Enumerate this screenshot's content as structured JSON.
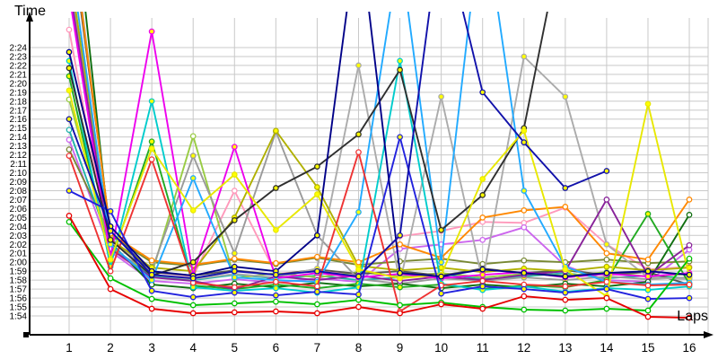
{
  "page": {
    "background": "#ffffff",
    "grid_color": "#c9c9c9",
    "axis_color": "#000000"
  },
  "chart_data": {
    "type": "line",
    "title": "",
    "ylabel": "Time",
    "xlabel": "Laps",
    "x_ticks": [
      "1",
      "2",
      "3",
      "4",
      "5",
      "6",
      "7",
      "8",
      "9",
      "10",
      "11",
      "12",
      "13",
      "14",
      "15",
      "16"
    ],
    "y_ticks": [
      "1:54",
      "1:55",
      "1:56",
      "1:57",
      "1:58",
      "1:59",
      "2:00",
      "2:01",
      "2:02",
      "2:03",
      "2:04",
      "2:05",
      "2:06",
      "2:07",
      "2:08",
      "2:09",
      "2:10",
      "2:11",
      "2:12",
      "2:13",
      "2:14",
      "2:15",
      "2:16",
      "2:17",
      "2:18",
      "2:19",
      "2:20",
      "2:21",
      "2:22",
      "2:23",
      "2:24"
    ],
    "y_axis": {
      "min_seconds": 114,
      "max_seconds": 144,
      "grid": true
    },
    "legend": "none",
    "series": [
      {
        "name": "pink",
        "color": "#ff99bb",
        "marker_fill": "#ffffff",
        "lap_seconds": [
          146.0,
          121.0,
          118.9,
          118.4,
          128.0,
          118.7,
          119.1,
          118.5,
          122.9,
          123.5,
          124.5,
          124.4,
          126.1,
          122.0,
          119.2,
          119.5
        ]
      },
      {
        "name": "violet",
        "color": "#cc66ee",
        "marker_fill": "#ffffff",
        "lap_seconds": [
          133.7,
          121.2,
          117.9,
          117.6,
          118.1,
          117.7,
          118.2,
          117.8,
          121.5,
          122.0,
          122.5,
          123.9,
          119.6,
          118.0,
          117.8,
          121.4
        ]
      },
      {
        "name": "olive-green",
        "color": "#788833",
        "marker_fill": "#ffffff",
        "lap_seconds": [
          132.6,
          123.0,
          120.0,
          119.6,
          120.3,
          119.8,
          120.5,
          119.7,
          120.1,
          120.4,
          119.8,
          120.2,
          120.0,
          120.3,
          119.9,
          120.1
        ]
      },
      {
        "name": "teal",
        "color": "#20b2aa",
        "marker_fill": "#ffffff",
        "lap_seconds": [
          134.8,
          121.8,
          118.4,
          118.0,
          118.6,
          118.2,
          118.5,
          118.0,
          118.3,
          118.7,
          118.1,
          118.4,
          118.8,
          118.2,
          118.5,
          118.2
        ]
      },
      {
        "name": "light-green",
        "color": "#99cc44",
        "marker_fill": "#ffffff",
        "lap_seconds": [
          138.2,
          121.6,
          118.7,
          134.1,
          118.2,
          118.8,
          118.3,
          118.9,
          118.4,
          118.8,
          118.3,
          118.7,
          118.5,
          118.9,
          118.4,
          118.7
        ]
      },
      {
        "name": "dark-gray",
        "color": "#555555",
        "marker_fill": "#ffffff",
        "lap_seconds": [
          158.0,
          123.4,
          118.9,
          118.5,
          119.1,
          118.6,
          119.2,
          118.7,
          119.0,
          118.5,
          119.3,
          118.8,
          119.1,
          118.6,
          118.9,
          117.5
        ]
      },
      {
        "name": "gray-a",
        "color": "#9a9a9a",
        "marker_fill": "#ffff00",
        "lap_seconds": [
          152.0,
          121.3,
          119.1,
          131.9,
          121.0,
          134.6,
          123.0,
          118.1,
          117.6,
          118.2,
          117.9,
          118.3,
          118.0,
          118.4,
          118.1,
          118.3
        ]
      },
      {
        "name": "gray-b",
        "color": "#ababab",
        "marker_fill": "#ffff00",
        "lap_seconds": [
          160.0,
          122.8,
          118.6,
          118.1,
          118.7,
          118.3,
          119.3,
          142.0,
          117.7,
          138.5,
          117.9,
          143.0,
          138.5,
          122.0,
          118.3,
          118.1
        ]
      },
      {
        "name": "forest-green",
        "color": "#0f6e0f",
        "marker_fill": "#ffffff",
        "lap_seconds": [
          165.0,
          122.2,
          117.5,
          117.1,
          117.6,
          117.2,
          117.7,
          117.3,
          117.6,
          117.1,
          117.5,
          117.2,
          117.6,
          117.3,
          117.8,
          125.3
        ]
      },
      {
        "name": "green-medium",
        "color": "#22aa22",
        "marker_fill": "#ffff00",
        "lap_seconds": [
          140.8,
          120.0,
          133.5,
          117.4,
          117.0,
          117.5,
          117.1,
          117.6,
          117.2,
          117.5,
          117.0,
          117.4,
          117.2,
          118.0,
          125.4,
          117.6
        ]
      },
      {
        "name": "olive",
        "color": "#b0b000",
        "marker_fill": "#ffff00",
        "lap_seconds": [
          153.0,
          122.5,
          119.4,
          119.0,
          125.0,
          134.7,
          128.4,
          119.6,
          119.1,
          119.4,
          118.9,
          119.3,
          119.0,
          119.5,
          119.1,
          119.4
        ]
      },
      {
        "name": "orange",
        "color": "#ff8800",
        "marker_fill": "#ffffff",
        "lap_seconds": [
          159.0,
          123.2,
          120.2,
          119.7,
          120.4,
          119.9,
          120.6,
          120.0,
          122.0,
          120.5,
          125.0,
          125.8,
          126.2,
          121.0,
          120.3,
          127.0
        ]
      },
      {
        "name": "purple",
        "color": "#882299",
        "marker_fill": "#ffffff",
        "lap_seconds": [
          151.0,
          121.5,
          118.3,
          117.9,
          117.0,
          118.4,
          118.0,
          118.5,
          117.9,
          118.4,
          118.0,
          118.6,
          119.0,
          127.0,
          118.5,
          121.9
        ]
      },
      {
        "name": "magenta",
        "color": "#ee00ee",
        "marker_fill": "#ffff00",
        "lap_seconds": [
          150.0,
          120.5,
          145.8,
          118.6,
          132.9,
          118.2,
          118.8,
          118.3,
          118.7,
          118.2,
          118.6,
          118.9,
          118.3,
          118.7,
          118.4,
          118.8
        ]
      },
      {
        "name": "cyan",
        "color": "#00cccc",
        "marker_fill": "#ffff00",
        "lap_seconds": [
          142.5,
          119.5,
          138.0,
          117.2,
          116.8,
          117.1,
          116.6,
          117.2,
          142.5,
          117.6,
          116.9,
          117.3,
          116.7,
          117.1,
          116.9,
          117.3
        ]
      },
      {
        "name": "sky-blue",
        "color": "#22aaff",
        "marker_fill": "#ffff00",
        "lap_seconds": [
          155.0,
          122.0,
          118.0,
          129.4,
          118.3,
          118.0,
          117.8,
          125.6,
          155.0,
          120.0,
          160.0,
          128.0,
          119.5,
          117.8,
          117.5,
          117.7
        ]
      },
      {
        "name": "red-b",
        "color": "#ee3333",
        "marker_fill": "#ffffff",
        "lap_seconds": [
          131.9,
          119.0,
          131.5,
          117.7,
          117.2,
          117.8,
          117.3,
          132.3,
          114.5,
          117.4,
          117.9,
          117.5,
          117.3,
          117.8,
          117.4,
          117.5
        ]
      },
      {
        "name": "black",
        "color": "#2f2f2f",
        "marker_fill": "#ffff00",
        "lap_seconds": [
          141.7,
          122.5,
          118.5,
          120.0,
          124.7,
          128.3,
          130.7,
          134.3,
          141.5,
          123.6,
          127.5,
          135.0,
          158.0,
          null,
          null,
          null
        ]
      },
      {
        "name": "yellow",
        "color": "#e8e800",
        "marker_fill": "#ffff00",
        "lap_seconds": [
          139.2,
          120.3,
          132.7,
          125.8,
          129.8,
          123.6,
          127.6,
          119.2,
          118.2,
          118.6,
          129.3,
          134.7,
          119.2,
          116.2,
          137.7,
          118.4
        ]
      },
      {
        "name": "blue",
        "color": "#2222dd",
        "marker_fill": "#ffff00",
        "lap_seconds": [
          128.0,
          125.7,
          116.8,
          116.1,
          116.6,
          116.3,
          116.7,
          116.4,
          134.0,
          116.5,
          117.3,
          117.0,
          116.6,
          117.0,
          115.9,
          116.0
        ]
      },
      {
        "name": "navy-a",
        "color": "#000088",
        "marker_fill": "#ffff00",
        "lap_seconds": [
          143.5,
          124.0,
          119.0,
          118.5,
          119.5,
          119.0,
          123.0,
          158.0,
          118.8,
          118.4,
          119.2,
          118.8,
          118.4,
          118.8,
          119.0,
          118.6
        ]
      },
      {
        "name": "navy-b",
        "color": "#1111aa",
        "marker_fill": "#ffff00",
        "lap_seconds": [
          136.0,
          123.5,
          118.6,
          118.2,
          119.0,
          118.6,
          119.0,
          118.4,
          123.0,
          158.0,
          139.0,
          133.4,
          128.3,
          130.2,
          null,
          null
        ]
      },
      {
        "name": "green",
        "color": "#00c000",
        "marker_fill": "#ffffff",
        "lap_seconds": [
          124.5,
          118.2,
          115.9,
          115.2,
          115.4,
          115.6,
          115.3,
          115.8,
          115.2,
          115.5,
          115.0,
          114.7,
          114.6,
          114.8,
          114.6,
          120.4
        ]
      },
      {
        "name": "red",
        "color": "#e60000",
        "marker_fill": "#ffffff",
        "lap_seconds": [
          125.2,
          117.0,
          114.8,
          114.3,
          114.4,
          114.5,
          114.3,
          115.0,
          114.3,
          115.3,
          114.8,
          116.2,
          115.8,
          116.0,
          113.9,
          113.8
        ]
      }
    ]
  }
}
